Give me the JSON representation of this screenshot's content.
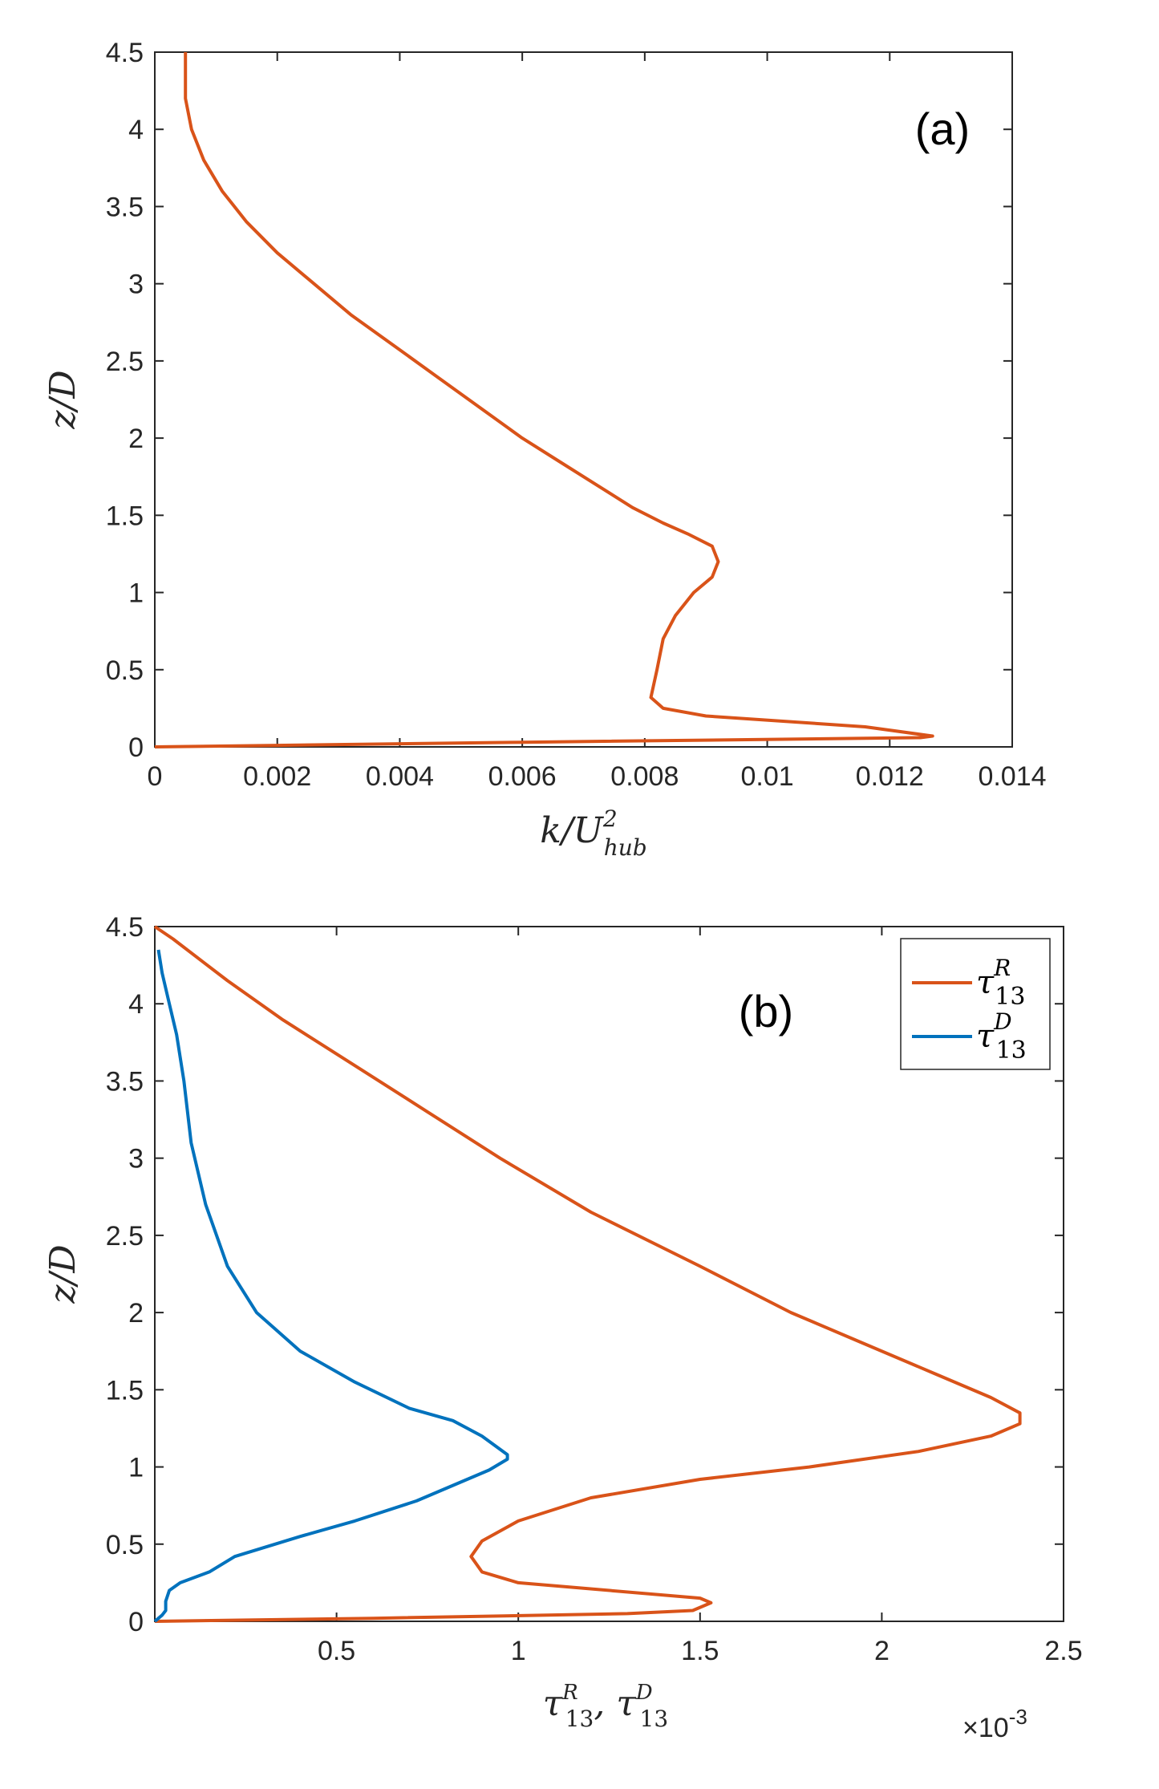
{
  "chart_data": [
    {
      "type": "line",
      "panel_label": "(a)",
      "xlabel": "k/U²hub",
      "xlabel_parts": {
        "main": "k/U",
        "sup": "2",
        "sub": "hub"
      },
      "ylabel": "z/D",
      "xlim": [
        0,
        0.014
      ],
      "ylim": [
        0,
        4.5
      ],
      "xticks": [
        0,
        0.002,
        0.004,
        0.006,
        0.008,
        0.01,
        0.012,
        0.014
      ],
      "xtick_labels": [
        "0",
        "0.002",
        "0.004",
        "0.006",
        "0.008",
        "0.01",
        "0.012",
        "0.014"
      ],
      "yticks": [
        0,
        0.5,
        1,
        1.5,
        2,
        2.5,
        3,
        3.5,
        4,
        4.5
      ],
      "ytick_labels": [
        "0",
        "0.5",
        "1",
        "1.5",
        "2",
        "2.5",
        "3",
        "3.5",
        "4",
        "4.5"
      ],
      "series": [
        {
          "name": "k/U²hub",
          "color": "#D95319",
          "x": [
            0,
            0.002,
            0.006,
            0.0125,
            0.0127,
            0.0116,
            0.009,
            0.0083,
            0.0081,
            0.0082,
            0.0083,
            0.0085,
            0.0088,
            0.0091,
            0.0092,
            0.0091,
            0.0087,
            0.0083,
            0.0078,
            0.0072,
            0.0066,
            0.006,
            0.0053,
            0.0046,
            0.0039,
            0.0032,
            0.0026,
            0.002,
            0.0015,
            0.0011,
            0.0008,
            0.0006,
            0.0005,
            0.0005
          ],
          "y": [
            0,
            0.01,
            0.03,
            0.06,
            0.07,
            0.13,
            0.2,
            0.25,
            0.32,
            0.5,
            0.7,
            0.85,
            1.0,
            1.1,
            1.2,
            1.3,
            1.38,
            1.45,
            1.55,
            1.7,
            1.85,
            2.0,
            2.2,
            2.4,
            2.6,
            2.8,
            3.0,
            3.2,
            3.4,
            3.6,
            3.8,
            4.0,
            4.2,
            4.5
          ]
        }
      ]
    },
    {
      "type": "line",
      "panel_label": "(b)",
      "xlabel": "τR13, τD13",
      "ylabel": "z/D",
      "exponent_label": "×10-3",
      "exponent_parts": {
        "base": "×10",
        "power": "-3"
      },
      "xlim": [
        0,
        2.5
      ],
      "ylim": [
        0,
        4.5
      ],
      "x_scale": "×10^-3",
      "xticks": [
        0.5,
        1,
        1.5,
        2,
        2.5
      ],
      "xtick_labels": [
        "0.5",
        "1",
        "1.5",
        "2",
        "2.5"
      ],
      "yticks": [
        0,
        0.5,
        1,
        1.5,
        2,
        2.5,
        3,
        3.5,
        4,
        4.5
      ],
      "ytick_labels": [
        "0",
        "0.5",
        "1",
        "1.5",
        "2",
        "2.5",
        "3",
        "3.5",
        "4",
        "4.5"
      ],
      "legend": {
        "position": "top-right"
      },
      "series": [
        {
          "name": "τR13",
          "legend_sup": "R",
          "legend_sub": "13",
          "color": "#D95319",
          "x": [
            0,
            0.6,
            1.3,
            1.48,
            1.53,
            1.5,
            1.0,
            0.9,
            0.87,
            0.9,
            1.0,
            1.2,
            1.5,
            1.8,
            2.1,
            2.3,
            2.38,
            2.38,
            2.3,
            2.15,
            1.95,
            1.75,
            1.5,
            1.2,
            0.95,
            0.75,
            0.55,
            0.35,
            0.2,
            0.05,
            0
          ],
          "y": [
            0,
            0.02,
            0.05,
            0.07,
            0.12,
            0.15,
            0.25,
            0.32,
            0.42,
            0.52,
            0.65,
            0.8,
            0.92,
            1.0,
            1.1,
            1.2,
            1.28,
            1.35,
            1.45,
            1.6,
            1.8,
            2.0,
            2.3,
            2.65,
            3.0,
            3.3,
            3.6,
            3.9,
            4.15,
            4.42,
            4.5
          ]
        },
        {
          "name": "τD13",
          "legend_sup": "D",
          "legend_sub": "13",
          "color": "#0072BD",
          "x": [
            0,
            0.02,
            0.03,
            0.03,
            0.04,
            0.07,
            0.15,
            0.22,
            0.4,
            0.55,
            0.72,
            0.82,
            0.92,
            0.97,
            0.97,
            0.9,
            0.82,
            0.7,
            0.55,
            0.4,
            0.28,
            0.2,
            0.14,
            0.1,
            0.08,
            0.06,
            0.04,
            0.02,
            0.01
          ],
          "y": [
            0,
            0.04,
            0.07,
            0.13,
            0.2,
            0.25,
            0.32,
            0.42,
            0.55,
            0.65,
            0.78,
            0.88,
            0.98,
            1.05,
            1.08,
            1.2,
            1.3,
            1.38,
            1.55,
            1.75,
            2.0,
            2.3,
            2.7,
            3.1,
            3.5,
            3.8,
            4.0,
            4.2,
            4.35
          ]
        }
      ]
    }
  ]
}
